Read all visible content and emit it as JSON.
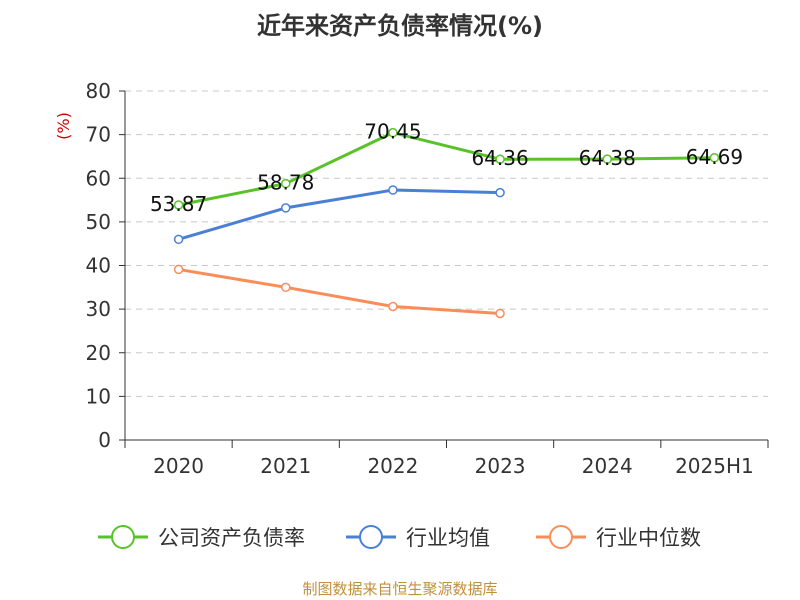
{
  "chart_data": {
    "type": "line",
    "title": "近年来资产负债率情况(%)",
    "ylabel": "(%)",
    "xlabel": "",
    "categories": [
      "2020",
      "2021",
      "2022",
      "2023",
      "2024",
      "2025H1"
    ],
    "ylim": [
      0,
      80
    ],
    "yticks": [
      "0",
      "10",
      "20",
      "30",
      "40",
      "50",
      "60",
      "70",
      "80"
    ],
    "grid": true,
    "legend_position": "bottom",
    "series": [
      {
        "name": "公司资产负债率",
        "color": "#5ac229",
        "values": [
          53.87,
          58.78,
          70.45,
          64.36,
          64.38,
          64.69
        ],
        "labels": [
          "53.87",
          "58.78",
          "70.45",
          "64.36",
          "64.38",
          "64.69"
        ]
      },
      {
        "name": "行业均值",
        "color": "#4a7fd6",
        "values": [
          46.0,
          53.2,
          57.3,
          56.7,
          null,
          null
        ]
      },
      {
        "name": "行业中位数",
        "color": "#f98d5a",
        "values": [
          39.1,
          35.0,
          30.6,
          29.0,
          null,
          null
        ]
      }
    ]
  },
  "source": "制图数据来自恒生聚源数据库"
}
